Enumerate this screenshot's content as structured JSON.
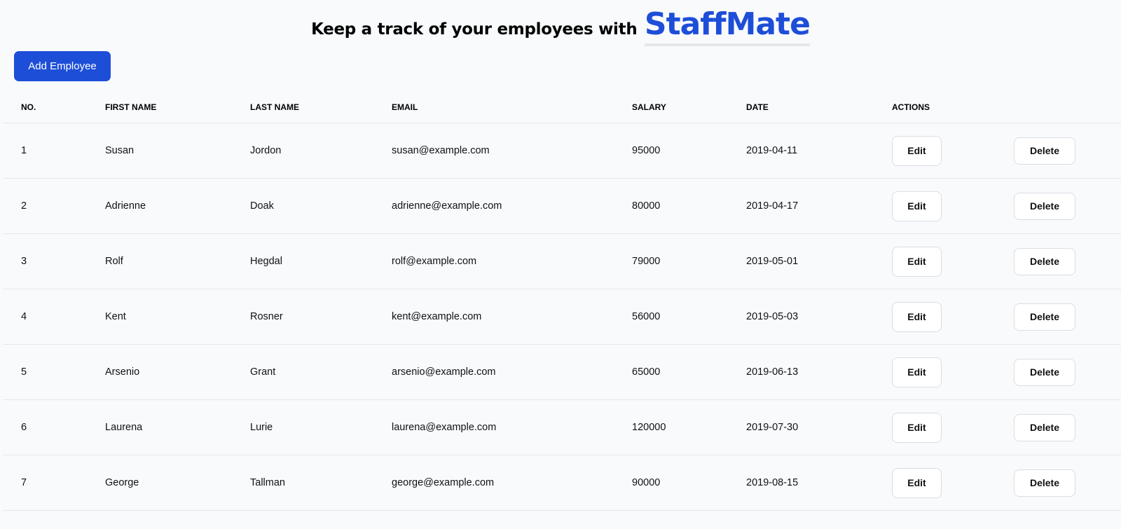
{
  "header": {
    "lead": "Keep a track of your employees with",
    "brand": "StaffMate"
  },
  "toolbar": {
    "add_label": "Add Employee"
  },
  "colors": {
    "accent": "#1d4ed8",
    "background": "#f8fafc"
  },
  "table": {
    "columns": [
      "NO.",
      "FIRST NAME",
      "LAST NAME",
      "EMAIL",
      "SALARY",
      "DATE",
      "ACTIONS"
    ],
    "edit_label": "Edit",
    "delete_label": "Delete",
    "rows": [
      {
        "no": "1",
        "first": "Susan",
        "last": "Jordon",
        "email": "susan@example.com",
        "salary": "95000",
        "date": "2019-04-11"
      },
      {
        "no": "2",
        "first": "Adrienne",
        "last": "Doak",
        "email": "adrienne@example.com",
        "salary": "80000",
        "date": "2019-04-17"
      },
      {
        "no": "3",
        "first": "Rolf",
        "last": "Hegdal",
        "email": "rolf@example.com",
        "salary": "79000",
        "date": "2019-05-01"
      },
      {
        "no": "4",
        "first": "Kent",
        "last": "Rosner",
        "email": "kent@example.com",
        "salary": "56000",
        "date": "2019-05-03"
      },
      {
        "no": "5",
        "first": "Arsenio",
        "last": "Grant",
        "email": "arsenio@example.com",
        "salary": "65000",
        "date": "2019-06-13"
      },
      {
        "no": "6",
        "first": "Laurena",
        "last": "Lurie",
        "email": "laurena@example.com",
        "salary": "120000",
        "date": "2019-07-30"
      },
      {
        "no": "7",
        "first": "George",
        "last": "Tallman",
        "email": "george@example.com",
        "salary": "90000",
        "date": "2019-08-15"
      }
    ]
  }
}
